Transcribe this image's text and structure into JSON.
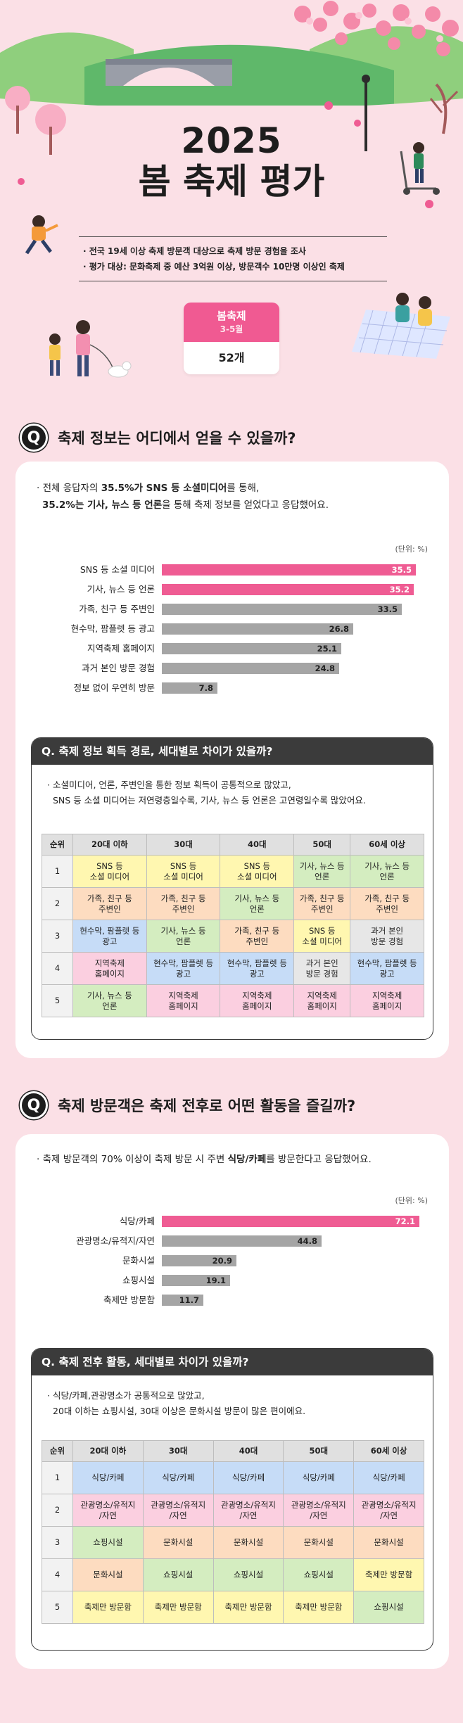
{
  "hero": {
    "year": "2025",
    "title": "봄 축제 평가",
    "survey_lines": [
      "· 전국 19세 이상 축제 방문객 대상으로 축제 방문 경험을 조사",
      "· 평가 대상: 문화축제 중 예산 3억원 이상, 방문객수 10만명 이상인 축제"
    ],
    "festival": {
      "name": "봄축제",
      "period": "3-5월",
      "count": "52개"
    }
  },
  "section1": {
    "badge": "Q",
    "question": "축제 정보는 어디에서 얻을 수 있을까?",
    "intro_line1_pre": "· 전체 응답자의 ",
    "intro_line1_bold": "35.5%가 SNS 등 소셜미디어",
    "intro_line1_post": "를 통해,",
    "intro_line2_bold1": "35.2%는 기사, 뉴스 등 언론",
    "intro_line2_post": "을 통해 축제 정보를 얻었다고 응답했어요.",
    "unit": "(단위: %)",
    "chart_data": {
      "type": "bar",
      "orientation": "horizontal",
      "categories": [
        "SNS 등 소셜 미디어",
        "기사, 뉴스 등 언론",
        "가족, 친구 등 주변인",
        "현수막, 팜플렛 등 광고",
        "지역축제 홈페이지",
        "과거 본인 방문 경험",
        "정보 없이 우연히 방문"
      ],
      "values": [
        35.5,
        35.2,
        33.5,
        26.8,
        25.1,
        24.8,
        7.8
      ],
      "labels": [
        "35.5",
        "35.2",
        "33.5",
        "26.8",
        "25.1",
        "24.8",
        "7.8"
      ],
      "highlight": [
        true,
        true,
        false,
        false,
        false,
        false,
        false
      ],
      "colors": {
        "highlight": "#ef5c93",
        "default": "#a5a5a5"
      },
      "xlim": [
        0,
        36
      ]
    },
    "sub": {
      "title": "Q. 축제 정보 획득 경로, 세대별로 차이가 있을까?",
      "desc_lines": [
        "· 소셜미디어, 언론, 주변인을 통한 정보 획득이 공통적으로 많았고,",
        "SNS 등 소셜 미디어는 저연령층일수록, 기사, 뉴스 등 언론은 고연령일수록 많았어요."
      ],
      "headers": [
        "순위",
        "20대 이하",
        "30대",
        "40대",
        "50대",
        "60세 이상"
      ],
      "rows": [
        {
          "rank": "1",
          "cells": [
            {
              "text": "SNS 등\n소셜 미디어",
              "color": "yel"
            },
            {
              "text": "SNS 등\n소셜 미디어",
              "color": "yel"
            },
            {
              "text": "SNS 등\n소셜 미디어",
              "color": "yel"
            },
            {
              "text": "기사, 뉴스 등\n언론",
              "color": "grn"
            },
            {
              "text": "기사, 뉴스 등\n언론",
              "color": "grn"
            }
          ]
        },
        {
          "rank": "2",
          "cells": [
            {
              "text": "가족, 친구 등\n주변인",
              "color": "ora"
            },
            {
              "text": "가족, 친구 등\n주변인",
              "color": "ora"
            },
            {
              "text": "기사, 뉴스 등\n언론",
              "color": "grn"
            },
            {
              "text": "가족, 친구 등\n주변인",
              "color": "ora"
            },
            {
              "text": "가족, 친구 등\n주변인",
              "color": "ora"
            }
          ]
        },
        {
          "rank": "3",
          "cells": [
            {
              "text": "현수막, 팜플렛 등\n광고",
              "color": "blu"
            },
            {
              "text": "기사, 뉴스 등\n언론",
              "color": "grn"
            },
            {
              "text": "가족, 친구 등\n주변인",
              "color": "ora"
            },
            {
              "text": "SNS 등\n소셜 미디어",
              "color": "yel"
            },
            {
              "text": "과거 본인\n방문 경험",
              "color": "gry"
            }
          ]
        },
        {
          "rank": "4",
          "cells": [
            {
              "text": "지역축제\n홈페이지",
              "color": "pnk"
            },
            {
              "text": "현수막, 팜플렛 등\n광고",
              "color": "blu"
            },
            {
              "text": "현수막, 팜플렛 등\n광고",
              "color": "blu"
            },
            {
              "text": "과거 본인\n방문 경험",
              "color": "gry"
            },
            {
              "text": "현수막, 팜플렛 등\n광고",
              "color": "blu"
            }
          ]
        },
        {
          "rank": "5",
          "cells": [
            {
              "text": "기사, 뉴스 등\n언론",
              "color": "grn"
            },
            {
              "text": "지역축제\n홈페이지",
              "color": "pnk"
            },
            {
              "text": "지역축제\n홈페이지",
              "color": "pnk"
            },
            {
              "text": "지역축제\n홈페이지",
              "color": "pnk"
            },
            {
              "text": "지역축제\n홈페이지",
              "color": "pnk"
            }
          ]
        }
      ]
    }
  },
  "section2": {
    "badge": "Q",
    "question": "축제 방문객은 축제 전후로 어떤 활동을 즐길까?",
    "intro_pre": "· 축제 방문객의 70% 이상이 축제 방문 시 주변 ",
    "intro_bold": "식당/카페",
    "intro_post": "를 방문한다고 응답했어요.",
    "unit": "(단위: %)",
    "chart_data": {
      "type": "bar",
      "orientation": "horizontal",
      "categories": [
        "식당/카페",
        "관광명소/유적지/자연",
        "문화시설",
        "쇼핑시설",
        "축제만 방문함"
      ],
      "values": [
        72.1,
        44.8,
        20.9,
        19.1,
        11.7
      ],
      "labels": [
        "72.1",
        "44.8",
        "20.9",
        "19.1",
        "11.7"
      ],
      "highlight": [
        true,
        false,
        false,
        false,
        false
      ],
      "colors": {
        "highlight": "#ef5c93",
        "default": "#a5a5a5"
      },
      "xlim": [
        0,
        72.1
      ]
    },
    "sub": {
      "title": "Q. 축제 전후 활동, 세대별로 차이가 있을까?",
      "desc_lines": [
        "· 식당/카페,관광명소가 공통적으로 많았고,",
        "20대 이하는 쇼핑시설, 30대 이상은 문화시설 방문이 많은 편이에요."
      ],
      "headers": [
        "순위",
        "20대 이하",
        "30대",
        "40대",
        "50대",
        "60세 이상"
      ],
      "rows": [
        {
          "rank": "1",
          "cells": [
            {
              "text": "식당/카페",
              "color": "blu"
            },
            {
              "text": "식당/카페",
              "color": "blu"
            },
            {
              "text": "식당/카페",
              "color": "blu"
            },
            {
              "text": "식당/카페",
              "color": "blu"
            },
            {
              "text": "식당/카페",
              "color": "blu"
            }
          ]
        },
        {
          "rank": "2",
          "cells": [
            {
              "text": "관광명소/유적지\n/자연",
              "color": "pnk"
            },
            {
              "text": "관광명소/유적지\n/자연",
              "color": "pnk"
            },
            {
              "text": "관광명소/유적지\n/자연",
              "color": "pnk"
            },
            {
              "text": "관광명소/유적지\n/자연",
              "color": "pnk"
            },
            {
              "text": "관광명소/유적지\n/자연",
              "color": "pnk"
            }
          ]
        },
        {
          "rank": "3",
          "cells": [
            {
              "text": "쇼핑시설",
              "color": "grn"
            },
            {
              "text": "문화시설",
              "color": "ora"
            },
            {
              "text": "문화시설",
              "color": "ora"
            },
            {
              "text": "문화시설",
              "color": "ora"
            },
            {
              "text": "문화시설",
              "color": "ora"
            }
          ]
        },
        {
          "rank": "4",
          "cells": [
            {
              "text": "문화시설",
              "color": "ora"
            },
            {
              "text": "쇼핑시설",
              "color": "grn"
            },
            {
              "text": "쇼핑시설",
              "color": "grn"
            },
            {
              "text": "쇼핑시설",
              "color": "grn"
            },
            {
              "text": "축제만 방문함",
              "color": "yel"
            }
          ]
        },
        {
          "rank": "5",
          "cells": [
            {
              "text": "축제만 방문함",
              "color": "yel"
            },
            {
              "text": "축제만 방문함",
              "color": "yel"
            },
            {
              "text": "축제만 방문함",
              "color": "yel"
            },
            {
              "text": "축제만 방문함",
              "color": "yel"
            },
            {
              "text": "쇼핑시설",
              "color": "grn"
            }
          ]
        }
      ]
    }
  }
}
